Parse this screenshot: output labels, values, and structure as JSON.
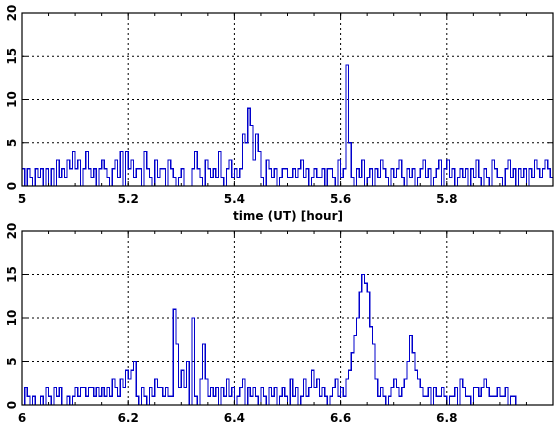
{
  "chart_data": [
    {
      "type": "line",
      "step": true,
      "title": "",
      "xlabel": "time (UT) [hour]",
      "ylabel": "",
      "xlim": [
        5.0,
        6.0
      ],
      "ylim": [
        0,
        20
      ],
      "xticks": [
        5,
        5.2,
        5.4,
        5.6,
        5.8
      ],
      "xtick_labels": [
        "5",
        "5.2",
        "5.4",
        "5.6",
        "5.8"
      ],
      "yticks": [
        0,
        5,
        10,
        15,
        20
      ],
      "ytick_labels": [
        "0",
        "5",
        "10",
        "15",
        "20"
      ],
      "grid": true,
      "series": [
        {
          "color": "#0000cc",
          "x_start": 5.0,
          "bin_width": 0.005,
          "values": [
            2,
            0,
            2,
            1,
            0,
            2,
            1,
            2,
            0,
            2,
            0,
            2,
            0,
            3,
            1,
            2,
            1,
            3,
            2,
            4,
            2,
            3,
            0,
            2,
            4,
            2,
            1,
            2,
            0,
            2,
            3,
            2,
            1,
            0,
            2,
            3,
            1,
            4,
            0,
            4,
            2,
            3,
            1,
            2,
            2,
            0,
            4,
            2,
            1,
            0,
            3,
            1,
            2,
            2,
            0,
            3,
            2,
            1,
            0,
            1,
            2,
            0,
            0,
            0,
            2,
            4,
            2,
            1,
            0,
            3,
            2,
            1,
            2,
            1,
            4,
            1,
            0,
            2,
            3,
            1,
            2,
            1,
            2,
            6,
            5,
            9,
            7,
            3,
            6,
            4,
            1,
            0,
            3,
            2,
            1,
            2,
            0,
            1,
            2,
            2,
            1,
            1,
            2,
            1,
            2,
            3,
            1,
            2,
            0,
            1,
            2,
            1,
            1,
            2,
            0,
            2,
            2,
            1,
            0,
            3,
            1,
            2,
            14,
            5,
            1,
            0,
            2,
            1,
            3,
            0,
            1,
            2,
            0,
            2,
            1,
            3,
            2,
            1,
            0,
            2,
            1,
            2,
            3,
            1,
            0,
            2,
            1,
            2,
            0,
            1,
            2,
            3,
            1,
            2,
            0,
            1,
            2,
            3,
            0,
            2,
            3,
            1,
            2,
            0,
            1,
            2,
            1,
            2,
            0,
            2,
            1,
            3,
            1,
            0,
            2,
            1,
            0,
            3,
            2,
            1,
            1,
            0,
            2,
            3,
            1,
            2,
            0,
            2,
            1,
            2,
            0,
            2,
            1,
            3,
            2,
            1,
            2,
            3,
            2,
            1
          ]
        }
      ]
    },
    {
      "type": "line",
      "step": true,
      "title": "",
      "xlabel": "",
      "ylabel": "",
      "xlim": [
        6.0,
        7.0
      ],
      "ylim": [
        0,
        20
      ],
      "xticks": [
        6,
        6.2,
        6.4,
        6.6,
        6.8
      ],
      "xtick_labels": [
        "6",
        "6.2",
        "6.4",
        "6.6",
        "6.8"
      ],
      "yticks": [
        0,
        5,
        10,
        15,
        20
      ],
      "ytick_labels": [
        "0",
        "5",
        "10",
        "15",
        "20"
      ],
      "grid": true,
      "series": [
        {
          "color": "#0000cc",
          "x_start": 6.0,
          "bin_width": 0.005,
          "values": [
            0,
            2,
            1,
            0,
            1,
            0,
            0,
            1,
            0,
            2,
            1,
            0,
            2,
            1,
            2,
            0,
            0,
            1,
            0,
            1,
            2,
            1,
            2,
            2,
            1,
            2,
            2,
            1,
            2,
            1,
            2,
            1,
            2,
            1,
            3,
            2,
            1,
            3,
            2,
            4,
            3,
            4,
            5,
            1,
            0,
            2,
            1,
            0,
            2,
            1,
            3,
            2,
            2,
            1,
            2,
            1,
            1,
            11,
            7,
            2,
            4,
            2,
            5,
            0,
            10,
            1,
            0,
            3,
            7,
            3,
            1,
            2,
            1,
            2,
            0,
            2,
            1,
            3,
            1,
            2,
            0,
            1,
            2,
            3,
            0,
            2,
            1,
            2,
            1,
            0,
            2,
            1,
            0,
            2,
            1,
            2,
            0,
            1,
            2,
            1,
            0,
            3,
            1,
            2,
            0,
            1,
            3,
            1,
            2,
            4,
            2,
            3,
            1,
            2,
            1,
            0,
            1,
            2,
            3,
            1,
            2,
            1,
            3,
            4,
            6,
            8,
            10,
            13,
            15,
            14,
            13,
            9,
            7,
            3,
            1,
            2,
            1,
            0,
            1,
            2,
            3,
            2,
            1,
            2,
            3,
            5,
            8,
            6,
            4,
            3,
            2,
            1,
            1,
            2,
            0,
            2,
            1,
            1,
            2,
            1,
            0,
            1,
            1,
            2,
            0,
            3,
            2,
            1,
            1,
            0,
            2,
            2,
            1,
            2,
            3,
            2,
            1,
            1,
            1,
            2,
            1,
            1,
            2,
            0,
            1,
            1,
            0,
            0,
            0,
            0,
            0,
            0,
            0,
            0,
            0,
            0,
            0,
            0,
            0,
            0
          ]
        }
      ]
    }
  ]
}
